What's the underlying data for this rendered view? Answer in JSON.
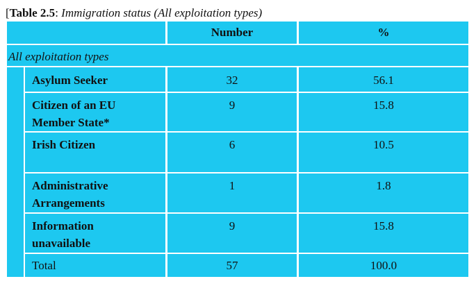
{
  "caption": {
    "bracket": "[",
    "label": "Table 2.5",
    "separator": ": ",
    "title": "Immigration status (All exploitation types)"
  },
  "table": {
    "headers": [
      "",
      "Number",
      "%"
    ],
    "group_label": "All exploitation types",
    "rows": [
      {
        "label": "Asylum Seeker",
        "number": "32",
        "percent": "56.1"
      },
      {
        "label": "Citizen of an EU\nMember State*",
        "number": "9",
        "percent": "15.8"
      },
      {
        "label": "Irish Citizen",
        "number": "6",
        "percent": "10.5"
      },
      {
        "label": "Administrative\nArrangements",
        "number": "1",
        "percent": "1.8"
      },
      {
        "label": "Information\nunavailable",
        "number": "9",
        "percent": "15.8"
      }
    ],
    "total": {
      "label": "Total",
      "number": "57",
      "percent": "100.0"
    }
  },
  "colors": {
    "cell_fill": "#1dc8f0",
    "grid_lines": "#ffffff"
  }
}
